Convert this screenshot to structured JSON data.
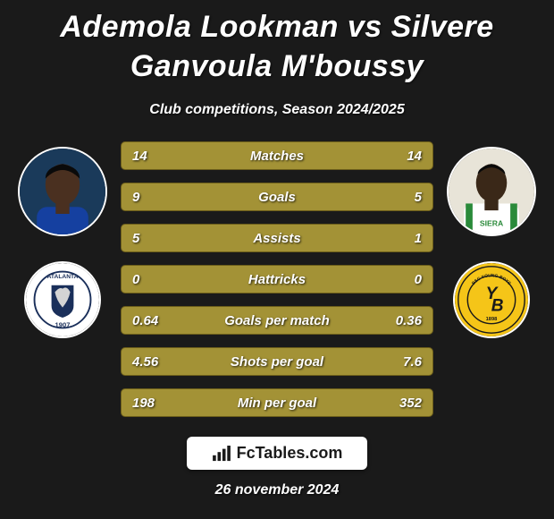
{
  "title": "Ademola Lookman vs Silvere Ganvoula M'boussy",
  "subtitle": "Club competitions, Season 2024/2025",
  "date": "26 november 2024",
  "brand": "FcTables.com",
  "colors": {
    "bar_bg": "#a39236",
    "bar_border": "#6b5d1a",
    "bg": "#1a1a1a",
    "text": "#ffffff"
  },
  "playerA": {
    "name": "Ademola Lookman",
    "portrait_colors": {
      "bg": "#1a3a5a",
      "skin": "#4a3020",
      "shirt": "#1540a0"
    },
    "club": {
      "name": "Atalanta",
      "badge_bg": "#ffffff",
      "badge_accent": "#1a2f5a",
      "badge_text": "ATALANTA",
      "year": "1907"
    }
  },
  "playerB": {
    "name": "Silvere Ganvoula M'boussy",
    "portrait_colors": {
      "bg": "#e8e4d8",
      "skin": "#3a2818",
      "shirt": "#ffffff",
      "stripe": "#2a8a3a"
    },
    "club": {
      "name": "Young Boys",
      "badge_bg": "#f5c518",
      "badge_accent": "#1a1a1a",
      "badge_text": "BSC YOUNG BOYS",
      "year": "1898"
    }
  },
  "stats": [
    {
      "label": "Matches",
      "a": "14",
      "b": "14"
    },
    {
      "label": "Goals",
      "a": "9",
      "b": "5"
    },
    {
      "label": "Assists",
      "a": "5",
      "b": "1"
    },
    {
      "label": "Hattricks",
      "a": "0",
      "b": "0"
    },
    {
      "label": "Goals per match",
      "a": "0.64",
      "b": "0.36"
    },
    {
      "label": "Shots per goal",
      "a": "4.56",
      "b": "7.6"
    },
    {
      "label": "Min per goal",
      "a": "198",
      "b": "352"
    }
  ],
  "typography": {
    "title_fontsize": 34,
    "subtitle_fontsize": 16,
    "stat_fontsize": 15,
    "date_fontsize": 16,
    "brand_fontsize": 18
  }
}
